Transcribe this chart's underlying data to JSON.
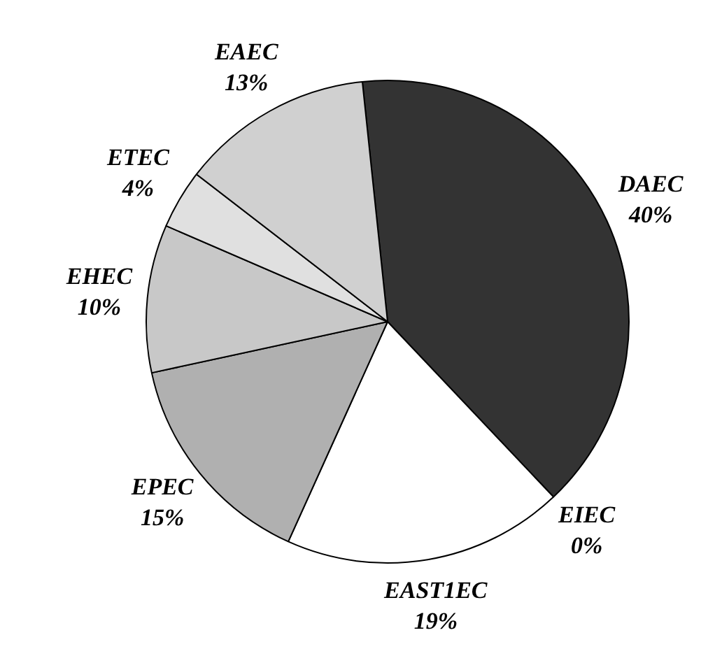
{
  "chart_data": {
    "type": "pie",
    "categories": [
      "DAEC",
      "EIEC",
      "EAST1EC",
      "EPEC",
      "EHEC",
      "ETEC",
      "EAEC"
    ],
    "values": [
      40,
      0,
      19,
      15,
      10,
      4,
      13
    ],
    "value_labels": [
      "40%",
      "0%",
      "19%",
      "15%",
      "10%",
      "4%",
      "13%"
    ],
    "colors": [
      "#333333",
      "#ffffff",
      "#ffffff",
      "#b0b0b0",
      "#c8c8c8",
      "#e0e0e0",
      "#d0d0d0"
    ]
  }
}
